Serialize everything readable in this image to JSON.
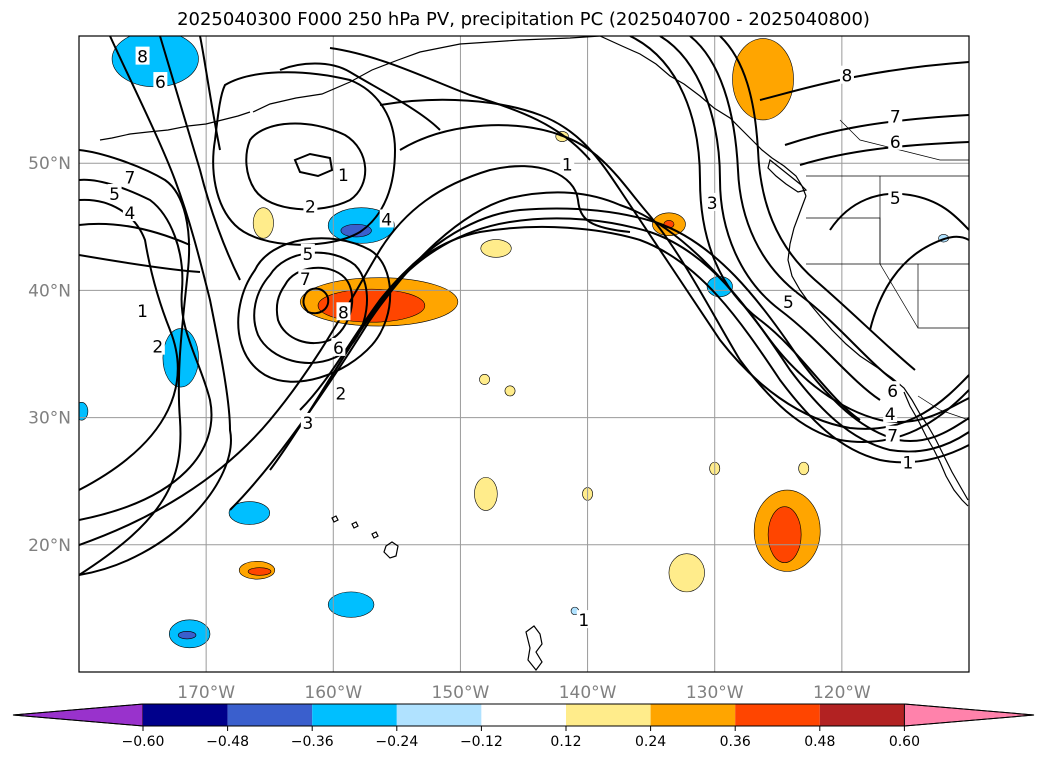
{
  "chart_data": {
    "type": "contour",
    "title": "2025040300 F000 250 hPa PV, precipitation PC (2025040700 - 2025040800)",
    "map": {
      "lon_range": [
        -180,
        -110
      ],
      "lat_range": [
        10,
        60
      ],
      "gridlines": true,
      "lat_ticks": [
        20,
        30,
        40,
        50
      ],
      "lat_tick_labels": [
        "20°N",
        "30°N",
        "40°N",
        "50°N"
      ],
      "lon_ticks": [
        -170,
        -160,
        -150,
        -140,
        -130,
        -120
      ],
      "lon_tick_labels": [
        "170°W",
        "160°W",
        "150°W",
        "140°W",
        "130°W",
        "120°W"
      ]
    },
    "contour_labels": [
      {
        "text": "8",
        "lon": -175,
        "lat": 58.3
      },
      {
        "text": "6",
        "lon": -173.6,
        "lat": 56.3
      },
      {
        "text": "7",
        "lon": -176,
        "lat": 48.8
      },
      {
        "text": "5",
        "lon": -177.2,
        "lat": 47.5
      },
      {
        "text": "4",
        "lon": -176,
        "lat": 46
      },
      {
        "text": "1",
        "lon": -159.2,
        "lat": 49
      },
      {
        "text": "2",
        "lon": -161.8,
        "lat": 46.5
      },
      {
        "text": "5",
        "lon": -162,
        "lat": 42.8
      },
      {
        "text": "7",
        "lon": -162.2,
        "lat": 40.8
      },
      {
        "text": "8",
        "lon": -159.2,
        "lat": 38.2
      },
      {
        "text": "6",
        "lon": -159.6,
        "lat": 35.4
      },
      {
        "text": "4",
        "lon": -155.8,
        "lat": 45.5
      },
      {
        "text": "3",
        "lon": -162,
        "lat": 29.5
      },
      {
        "text": "2",
        "lon": -159.4,
        "lat": 31.8
      },
      {
        "text": "2",
        "lon": -173.8,
        "lat": 35.5
      },
      {
        "text": "1",
        "lon": -175,
        "lat": 38.3
      },
      {
        "text": "1",
        "lon": -141.6,
        "lat": 49.8
      },
      {
        "text": "3",
        "lon": -130.2,
        "lat": 46.8
      },
      {
        "text": "5",
        "lon": -124.2,
        "lat": 39
      },
      {
        "text": "8",
        "lon": -119.6,
        "lat": 56.8
      },
      {
        "text": "7",
        "lon": -115.8,
        "lat": 53.6
      },
      {
        "text": "6",
        "lon": -115.8,
        "lat": 51.6
      },
      {
        "text": "5",
        "lon": -115.8,
        "lat": 47.2
      },
      {
        "text": "6",
        "lon": -116,
        "lat": 32
      },
      {
        "text": "4",
        "lon": -116.2,
        "lat": 30.2
      },
      {
        "text": "1",
        "lon": -114.8,
        "lat": 26.4
      },
      {
        "text": "7",
        "lon": -116,
        "lat": 28.5
      },
      {
        "text": "1",
        "lon": -140.3,
        "lat": 14
      }
    ],
    "colorbar": {
      "levels": [
        -0.6,
        -0.48,
        -0.36,
        -0.24,
        -0.12,
        0.12,
        0.24,
        0.36,
        0.48,
        0.6
      ],
      "tick_labels": [
        "−0.60",
        "−0.48",
        "−0.36",
        "−0.24",
        "−0.12",
        "0.12",
        "0.24",
        "0.36",
        "0.48",
        "0.60"
      ],
      "colors": [
        "#9932CC",
        "#00008B",
        "#3A5FCD",
        "#00BFFF",
        "#B0E2FF",
        "#FFFFFF",
        "#FFEC8B",
        "#FFA500",
        "#FF4500",
        "#B22222",
        "#FF82AB"
      ],
      "extend": "both"
    },
    "shaded_regions": [
      {
        "value": -0.3,
        "lon": -174,
        "lat": 58.2,
        "rx": 3.4,
        "ry": 2.2
      },
      {
        "value": -0.3,
        "lon": -157.8,
        "lat": 45.1,
        "rx": 2.6,
        "ry": 1.4
      },
      {
        "value": -0.4,
        "lon": -158.2,
        "lat": 44.7,
        "rx": 1.2,
        "ry": 0.5
      },
      {
        "value": -0.3,
        "lon": -172,
        "lat": 34.7,
        "rx": 1.4,
        "ry": 2.3
      },
      {
        "value": -0.3,
        "lon": -179.8,
        "lat": 30.5,
        "rx": 0.5,
        "ry": 0.7
      },
      {
        "value": -0.3,
        "lon": -166.6,
        "lat": 22.5,
        "rx": 1.6,
        "ry": 0.9
      },
      {
        "value": -0.3,
        "lon": -158.6,
        "lat": 15.3,
        "rx": 1.8,
        "ry": 1
      },
      {
        "value": -0.3,
        "lon": -171.3,
        "lat": 13,
        "rx": 1.6,
        "ry": 1.1
      },
      {
        "value": -0.4,
        "lon": -171.5,
        "lat": 12.9,
        "rx": 0.7,
        "ry": 0.3
      },
      {
        "value": -0.3,
        "lon": -129.6,
        "lat": 40.3,
        "rx": 1,
        "ry": 0.8
      },
      {
        "value": -0.2,
        "lon": -112,
        "lat": 44.1,
        "rx": 0.4,
        "ry": 0.3
      },
      {
        "value": -0.2,
        "lon": -141,
        "lat": 14.8,
        "rx": 0.3,
        "ry": 0.3
      },
      {
        "value": 0.3,
        "lon": -156.4,
        "lat": 39.1,
        "rx": 6.2,
        "ry": 1.9
      },
      {
        "value": 0.42,
        "lon": -157,
        "lat": 38.8,
        "rx": 4.2,
        "ry": 1.3
      },
      {
        "value": 0.3,
        "lon": -126.2,
        "lat": 56.6,
        "rx": 2.4,
        "ry": 3.2
      },
      {
        "value": 0.3,
        "lon": -124.3,
        "lat": 21.1,
        "rx": 2.6,
        "ry": 3.2
      },
      {
        "value": 0.4,
        "lon": -124.5,
        "lat": 20.8,
        "rx": 1.3,
        "ry": 2.2
      },
      {
        "value": 0.3,
        "lon": -166,
        "lat": 18,
        "rx": 1.4,
        "ry": 0.7
      },
      {
        "value": 0.4,
        "lon": -165.8,
        "lat": 17.9,
        "rx": 0.9,
        "ry": 0.3
      },
      {
        "value": 0.3,
        "lon": -133.6,
        "lat": 45.2,
        "rx": 1.3,
        "ry": 0.9
      },
      {
        "value": 0.4,
        "lon": -133.6,
        "lat": 45.2,
        "rx": 0.4,
        "ry": 0.3
      },
      {
        "value": 0.2,
        "lon": -165.5,
        "lat": 45.3,
        "rx": 0.8,
        "ry": 1.2
      },
      {
        "value": 0.2,
        "lon": -147.2,
        "lat": 43.3,
        "rx": 1.2,
        "ry": 0.7
      },
      {
        "value": 0.2,
        "lon": -142,
        "lat": 52.1,
        "rx": 0.5,
        "ry": 0.4
      },
      {
        "value": 0.2,
        "lon": -148,
        "lat": 24,
        "rx": 0.9,
        "ry": 1.3
      },
      {
        "value": 0.2,
        "lon": -132.2,
        "lat": 17.8,
        "rx": 1.4,
        "ry": 1.5
      },
      {
        "value": 0.2,
        "lon": -148.1,
        "lat": 33,
        "rx": 0.4,
        "ry": 0.4
      },
      {
        "value": 0.2,
        "lon": -146.1,
        "lat": 32.1,
        "rx": 0.4,
        "ry": 0.4
      },
      {
        "value": 0.2,
        "lon": -140,
        "lat": 24,
        "rx": 0.4,
        "ry": 0.5
      },
      {
        "value": 0.2,
        "lon": -130,
        "lat": 26,
        "rx": 0.4,
        "ry": 0.5
      },
      {
        "value": 0.2,
        "lon": -123,
        "lat": 26,
        "rx": 0.4,
        "ry": 0.5
      }
    ]
  }
}
